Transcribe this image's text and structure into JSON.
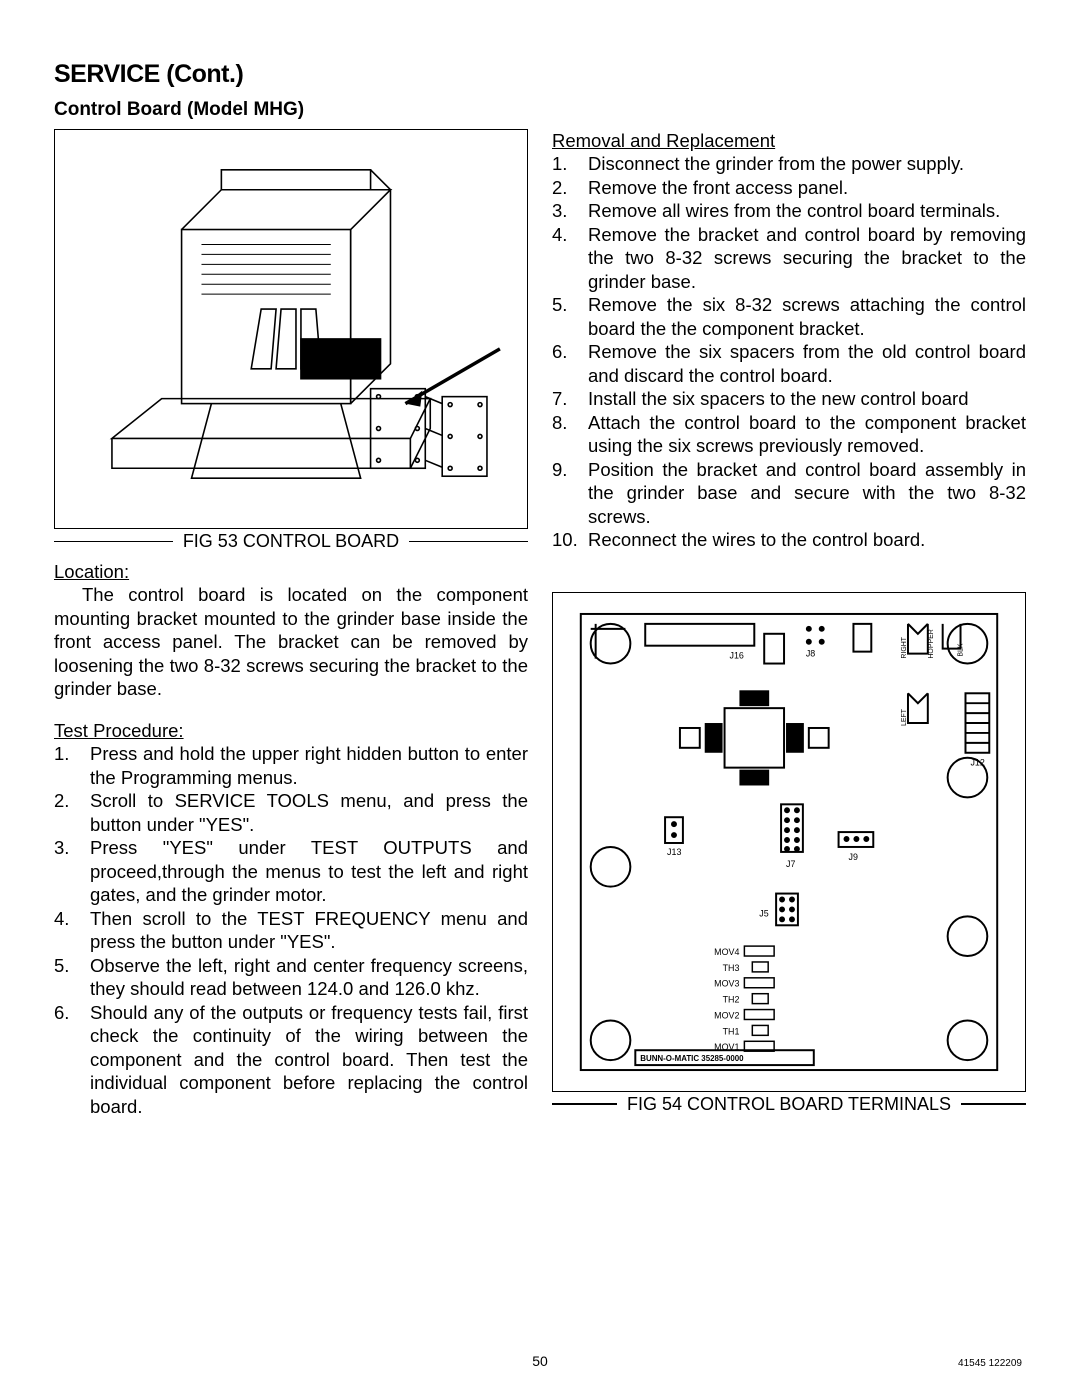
{
  "heading": "SERVICE (Cont.)",
  "subheading": "Control Board (Model MHG)",
  "fig53": {
    "caption": "FIG 53 CONTROL BOARD"
  },
  "location": {
    "label": "Location:",
    "text": "The control board is located on the component mounting bracket mounted to the grinder base inside the front access panel. The bracket can be removed by loosening the two 8-32 screws securing the bracket to the grinder base."
  },
  "test": {
    "label": "Test Procedure:",
    "steps": [
      "Press and hold the upper right hidden button to enter the Programming menus.",
      "Scroll to SERVICE TOOLS menu, and press the button under \"YES\".",
      "Press \"YES\" under TEST OUTPUTS and proceed,through the menus to test the left and right gates, and the grinder motor.",
      "Then scroll to the TEST FREQUENCY menu and press the button under \"YES\".",
      "Observe the left, right and center frequency screens, they should read between 124.0 and 126.0 khz.",
      "Should any of the outputs or frequency tests fail, first check the continuity of the wiring between the component and the control board. Then test the individual component before replacing the control board."
    ]
  },
  "removal": {
    "label": "Removal and Replacement",
    "steps": [
      "Disconnect the grinder from the power supply.",
      "Remove the front access panel.",
      "Remove all wires from the control board terminals.",
      "Remove the bracket and control board by removing the two 8-32 screws securing the bracket to the grinder base.",
      "Remove the six 8-32 screws attaching the control board the the component bracket.",
      "Remove the six spacers from the old control board and discard the control board.",
      "Install the six spacers to the new control board",
      "Attach the control board to the component bracket using the six screws previously removed.",
      "Position the bracket and control board assembly in the grinder base and secure with the two 8-32 screws.",
      "Reconnect the wires to the control board."
    ]
  },
  "fig54": {
    "caption": "FIG 54 CONTROL BOARD TERMINALS"
  },
  "board": {
    "connectors": [
      "J16",
      "J8",
      "J13",
      "J7",
      "J9",
      "J5",
      "J12"
    ],
    "mov_labels": [
      "MOV4",
      "TH3",
      "MOV3",
      "TH2",
      "MOV2",
      "TH1",
      "MOV1"
    ],
    "side_labels_top": [
      "RIGHT",
      "HOPPER",
      "BLK"
    ],
    "side_labels_mid": [
      "LEFT"
    ],
    "footer_text": "BUNN-O-MATIC 35285-0000",
    "stroke": "#000000",
    "stroke_width": 2,
    "font_size": 9
  },
  "page_number": "50",
  "doc_id": "41545 122209"
}
